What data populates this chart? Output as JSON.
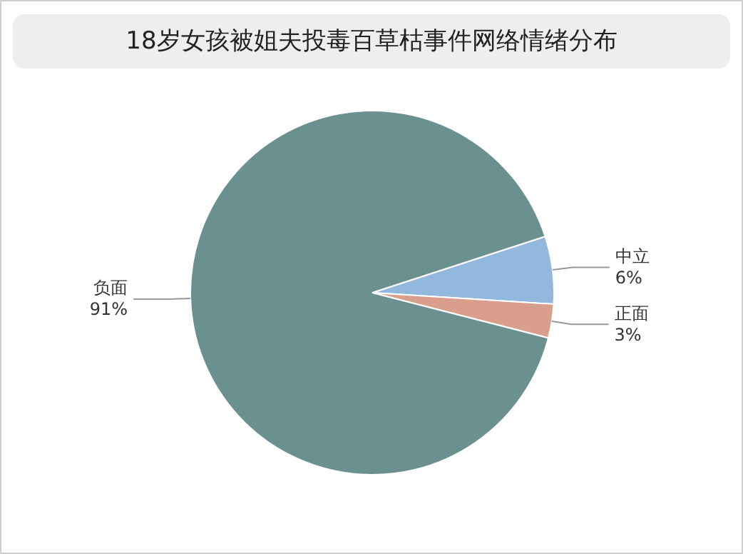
{
  "chart_data": {
    "type": "pie",
    "title": "18岁女孩被姐夫投毒百草枯事件网络情绪分布",
    "categories": [
      "中立",
      "正面",
      "负面"
    ],
    "values": [
      6,
      3,
      91
    ],
    "colors": [
      "#93b8de",
      "#d99e8c",
      "#6a918f"
    ],
    "value_labels": [
      "6%",
      "3%",
      "91%"
    ],
    "legend": false
  }
}
